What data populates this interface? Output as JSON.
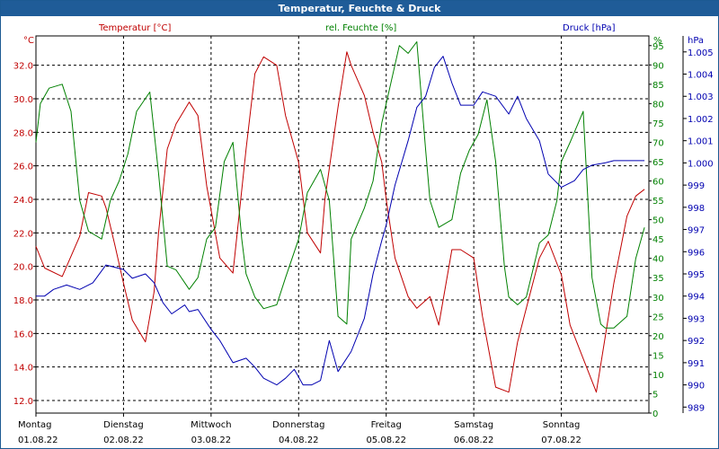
{
  "window": {
    "title": "Temperatur, Feuchte & Druck"
  },
  "colors": {
    "temperature": "#c00000",
    "humidity": "#008000",
    "pressure": "#0000b0",
    "grid": "#000000",
    "title_bg": "#1f5c98"
  },
  "chart_data": {
    "type": "line",
    "title": "Temperatur, Feuchte & Druck",
    "grid": true,
    "x": {
      "days": [
        {
          "name": "Montag",
          "date": "01.08.22"
        },
        {
          "name": "Dienstag",
          "date": "02.08.22"
        },
        {
          "name": "Mittwoch",
          "date": "03.08.22"
        },
        {
          "name": "Donnerstag",
          "date": "04.08.22"
        },
        {
          "name": "Freitag",
          "date": "05.08.22"
        },
        {
          "name": "Samstag",
          "date": "06.08.22"
        },
        {
          "name": "Sonntag",
          "date": "07.08.22"
        }
      ],
      "range_days": [
        0,
        7
      ]
    },
    "axes": {
      "temperature": {
        "unit": "°C",
        "label": "Temperatur [°C]",
        "range": [
          11.25,
          33.75
        ],
        "ticks": [
          "12.0",
          "14.0",
          "16.0",
          "18.0",
          "20.0",
          "22.0",
          "24.0",
          "26.0",
          "28.0",
          "30.0",
          "32.0"
        ],
        "tick_values": [
          12,
          14,
          16,
          18,
          20,
          22,
          24,
          26,
          28,
          30,
          32
        ]
      },
      "humidity": {
        "unit": "%",
        "label": "rel. Feuchte [%]",
        "range": [
          0,
          97.5
        ],
        "ticks": [
          "0",
          "5",
          "10",
          "15",
          "20",
          "25",
          "30",
          "35",
          "40",
          "45",
          "50",
          "55",
          "60",
          "65",
          "70",
          "75",
          "80",
          "85",
          "90",
          "95"
        ],
        "tick_values": [
          0,
          5,
          10,
          15,
          20,
          25,
          30,
          35,
          40,
          45,
          50,
          55,
          60,
          65,
          70,
          75,
          80,
          85,
          90,
          95
        ]
      },
      "pressure": {
        "unit": "hPa",
        "label": "Druck [hPa]",
        "range": [
          988.73,
          1005.72
        ],
        "ticks": [
          "989",
          "990",
          "991",
          "992",
          "993",
          "994",
          "995",
          "996",
          "997",
          "998",
          "999",
          "1.000",
          "1.001",
          "1.002",
          "1.003",
          "1.004",
          "1.005"
        ],
        "tick_values": [
          989,
          990,
          991,
          992,
          993,
          994,
          995,
          996,
          997,
          998,
          999,
          1000,
          1001,
          1002,
          1003,
          1004,
          1005
        ]
      }
    },
    "series": [
      {
        "name": "Temperatur [°C]",
        "axis": "temperature",
        "color": "#c00000",
        "x": [
          0,
          0.1,
          0.3,
          0.5,
          0.6,
          0.75,
          0.8,
          0.9,
          1.0,
          1.1,
          1.25,
          1.35,
          1.4,
          1.5,
          1.6,
          1.75,
          1.85,
          1.95,
          2.1,
          2.25,
          2.4,
          2.5,
          2.6,
          2.75,
          2.85,
          3.0,
          3.1,
          3.25,
          3.3,
          3.45,
          3.55,
          3.6,
          3.75,
          3.85,
          3.95,
          4.0,
          4.1,
          4.25,
          4.35,
          4.5,
          4.6,
          4.75,
          4.85,
          5.0,
          5.1,
          5.25,
          5.4,
          5.5,
          5.6,
          5.75,
          5.85,
          6.0,
          6.1,
          6.25,
          6.4,
          6.6,
          6.75,
          6.85,
          6.95
        ],
        "y": [
          21.2,
          19.9,
          19.4,
          21.8,
          24.4,
          24.2,
          23.5,
          21.3,
          19.0,
          16.8,
          15.5,
          18.5,
          22.0,
          27.0,
          28.5,
          29.8,
          29.0,
          24.8,
          20.5,
          19.6,
          27.0,
          31.5,
          32.5,
          32.0,
          29.0,
          26.2,
          22.0,
          20.8,
          24.0,
          29.5,
          32.8,
          32.0,
          30.2,
          28.0,
          26.2,
          24.0,
          20.5,
          18.2,
          17.5,
          18.2,
          16.5,
          21.0,
          21.0,
          20.5,
          17.0,
          12.8,
          12.5,
          15.5,
          17.5,
          20.5,
          21.5,
          19.5,
          16.5,
          14.5,
          12.5,
          19.0,
          23.0,
          24.2,
          24.6
        ]
      },
      {
        "name": "rel. Feuchte [%]",
        "axis": "humidity",
        "color": "#008000",
        "x": [
          0,
          0.05,
          0.15,
          0.3,
          0.4,
          0.5,
          0.6,
          0.75,
          0.85,
          0.95,
          1.05,
          1.15,
          1.3,
          1.4,
          1.5,
          1.6,
          1.75,
          1.85,
          1.95,
          2.05,
          2.15,
          2.25,
          2.35,
          2.4,
          2.5,
          2.6,
          2.75,
          2.85,
          3.0,
          3.1,
          3.25,
          3.35,
          3.45,
          3.55,
          3.6,
          3.75,
          3.85,
          3.95,
          4.05,
          4.15,
          4.25,
          4.35,
          4.45,
          4.5,
          4.6,
          4.75,
          4.85,
          4.95,
          5.05,
          5.15,
          5.25,
          5.35,
          5.4,
          5.5,
          5.6,
          5.75,
          5.85,
          5.95,
          6.0,
          6.1,
          6.25,
          6.35,
          6.45,
          6.5,
          6.6,
          6.75,
          6.85,
          6.95
        ],
        "y": [
          70,
          80,
          84,
          85,
          78,
          55,
          47,
          45,
          55,
          60,
          67,
          78,
          83,
          62,
          38,
          37,
          32,
          35,
          45,
          48,
          65,
          70,
          45,
          36,
          30,
          27,
          28,
          35,
          45,
          57,
          63,
          55,
          25,
          23,
          45,
          53,
          60,
          75,
          85,
          95,
          93,
          96,
          68,
          55,
          48,
          50,
          62,
          68,
          72,
          81,
          65,
          38,
          30,
          28,
          30,
          44,
          46,
          55,
          65,
          70,
          78,
          35,
          23,
          22,
          22,
          25,
          40,
          48
        ]
      },
      {
        "name": "Druck [hPa]",
        "axis": "pressure",
        "color": "#0000b0",
        "x": [
          0,
          0.1,
          0.2,
          0.35,
          0.5,
          0.65,
          0.8,
          1.0,
          1.1,
          1.25,
          1.35,
          1.45,
          1.55,
          1.7,
          1.75,
          1.85,
          2.0,
          2.1,
          2.25,
          2.4,
          2.5,
          2.6,
          2.75,
          2.85,
          2.95,
          3.05,
          3.15,
          3.25,
          3.35,
          3.45,
          3.6,
          3.75,
          3.85,
          3.95,
          4.0,
          4.1,
          4.25,
          4.35,
          4.45,
          4.55,
          4.65,
          4.75,
          4.85,
          5.0,
          5.1,
          5.25,
          5.4,
          5.5,
          5.6,
          5.75,
          5.85,
          6.0,
          6.15,
          6.25,
          6.35,
          6.5,
          6.6,
          6.75,
          6.85,
          6.95
        ],
        "y": [
          994.0,
          994.0,
          994.3,
          994.5,
          994.3,
          994.6,
          995.4,
          995.2,
          994.8,
          995.0,
          994.6,
          993.7,
          993.2,
          993.6,
          993.3,
          993.4,
          992.5,
          992.0,
          991.0,
          991.2,
          990.8,
          990.3,
          990.0,
          990.3,
          990.7,
          990.0,
          990.0,
          990.2,
          992.0,
          990.6,
          991.5,
          993.0,
          995.0,
          996.5,
          997.2,
          999.0,
          1001.0,
          1002.5,
          1003.0,
          1004.3,
          1004.8,
          1003.6,
          1002.6,
          1002.6,
          1003.2,
          1003.0,
          1002.2,
          1003.0,
          1002.0,
          1001.0,
          999.5,
          998.9,
          999.2,
          999.7,
          999.9,
          1000.0,
          1000.1,
          1000.1,
          1000.1,
          1000.1
        ]
      }
    ]
  }
}
